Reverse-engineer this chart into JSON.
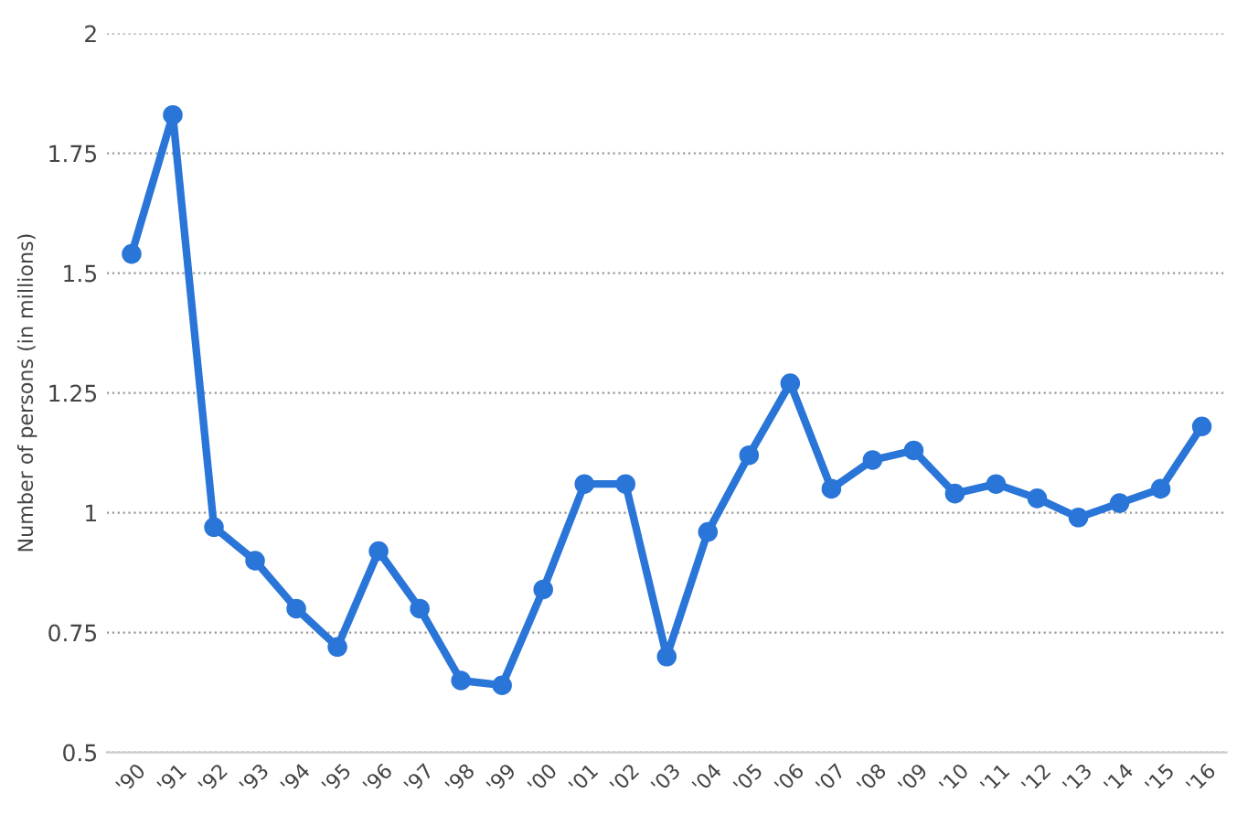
{
  "chart_data": {
    "type": "line",
    "ylabel": "Number of persons (in millions)",
    "categories": [
      "'90",
      "'91",
      "'92",
      "'93",
      "'94",
      "'95",
      "'96",
      "'97",
      "'98",
      "'99",
      "'00",
      "'01",
      "'02",
      "'03",
      "'04",
      "'05",
      "'06",
      "'07",
      "'08",
      "'09",
      "'10",
      "'11",
      "'12",
      "'13",
      "'14",
      "'15",
      "'16"
    ],
    "series": [
      {
        "color": "#2a75d8",
        "values": [
          1.54,
          1.83,
          0.97,
          0.9,
          0.8,
          0.72,
          0.92,
          0.8,
          0.65,
          0.64,
          0.84,
          1.06,
          1.06,
          0.7,
          0.96,
          1.12,
          1.27,
          1.05,
          1.11,
          1.13,
          1.04,
          1.06,
          1.03,
          0.99,
          1.02,
          1.05,
          1.18
        ]
      }
    ],
    "ylim": [
      0.5,
      2
    ],
    "yticks": [
      0.5,
      0.75,
      1,
      1.25,
      1.5,
      1.75,
      2
    ],
    "grid": "y",
    "marker": "circle",
    "line_style": "solid",
    "legend": false
  }
}
